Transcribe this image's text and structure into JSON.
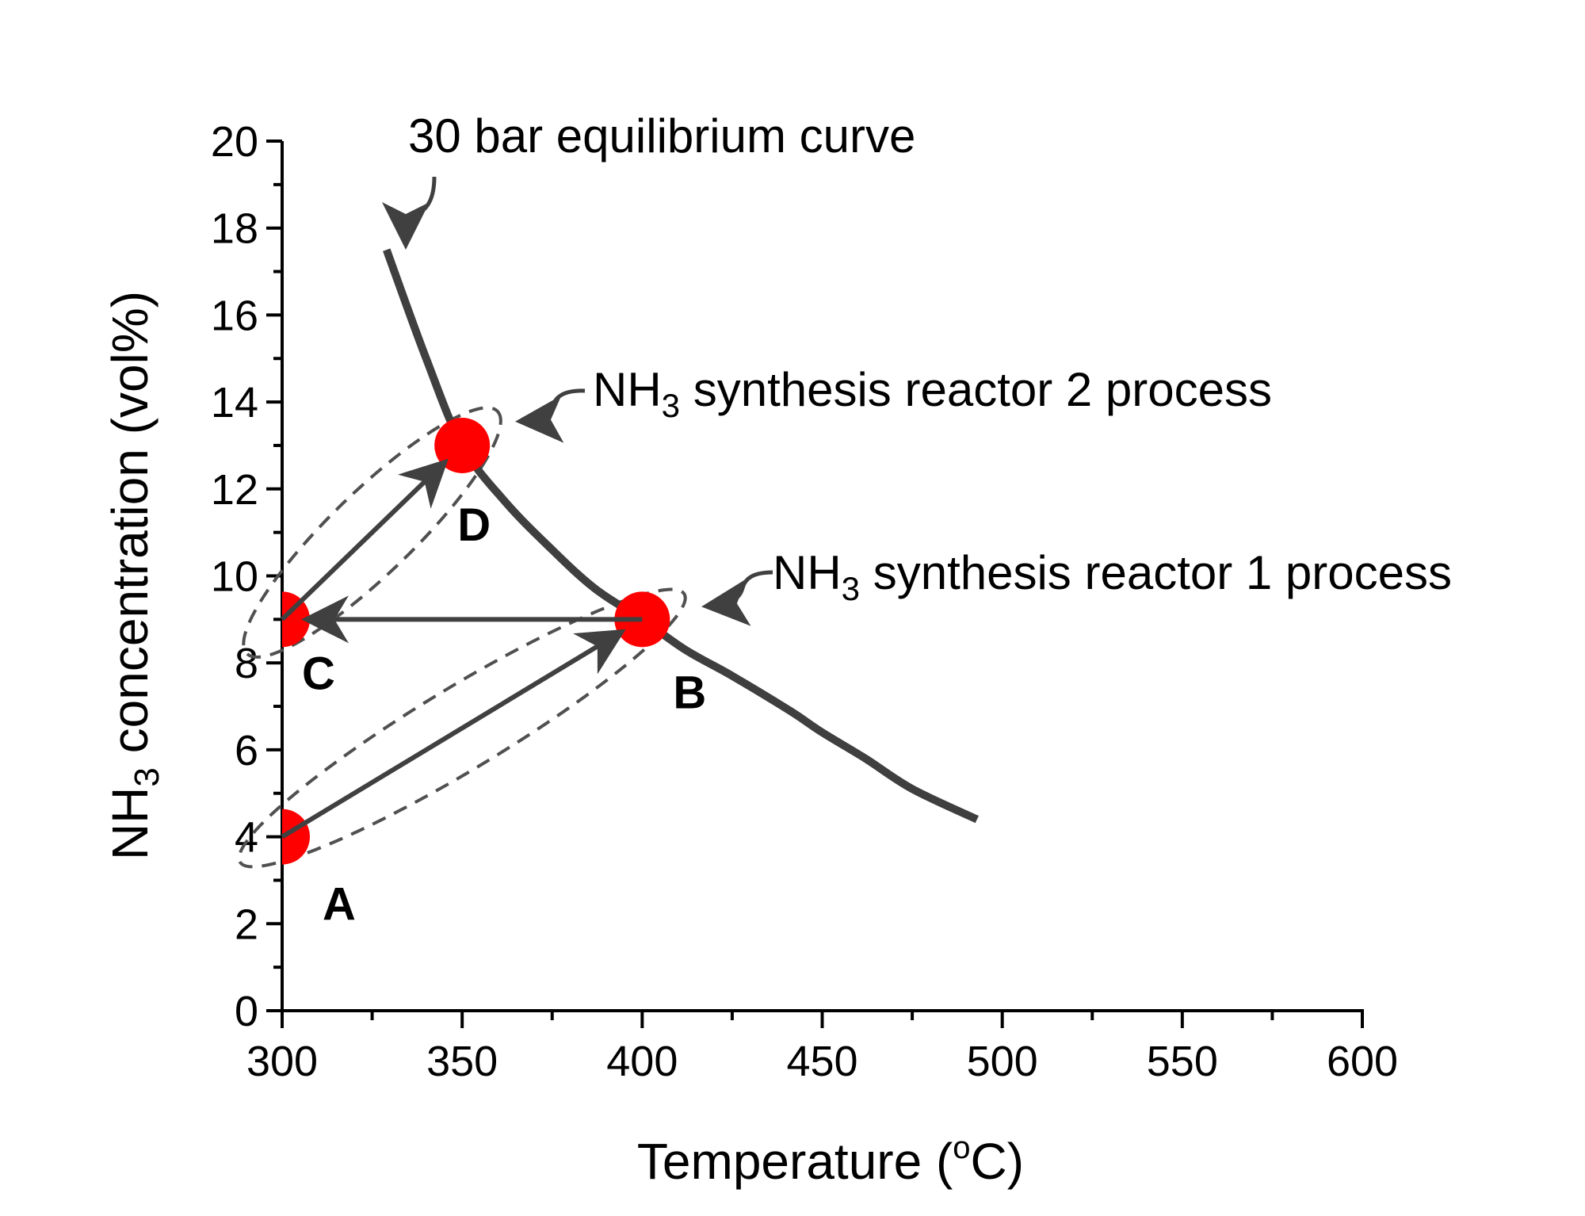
{
  "chart_data": {
    "type": "line",
    "title": "",
    "xlabel": "Temperature (°C)",
    "ylabel": "NH3 concentration (vol%)",
    "xlim": [
      300,
      600
    ],
    "ylim": [
      0,
      20
    ],
    "x_ticks": [
      300,
      350,
      400,
      450,
      500,
      550,
      600
    ],
    "y_ticks": [
      0,
      2,
      4,
      6,
      8,
      10,
      12,
      14,
      16,
      18,
      20
    ],
    "grid": false,
    "legend": null,
    "series": [
      {
        "name": "30 bar equilibrium curve",
        "style": "solid",
        "color": "#3f3f3f",
        "x": [
          329,
          340,
          350,
          362,
          375,
          387,
          400,
          412,
          425,
          441,
          450,
          462,
          475,
          493
        ],
        "y": [
          17.5,
          15.0,
          13.0,
          11.7,
          10.6,
          9.7,
          9.0,
          8.3,
          7.7,
          6.9,
          6.4,
          5.8,
          5.1,
          4.4
        ]
      }
    ],
    "points": [
      {
        "label": "A",
        "x": 300,
        "y": 4,
        "color": "#ff0000"
      },
      {
        "label": "B",
        "x": 400,
        "y": 9,
        "color": "#ff0000"
      },
      {
        "label": "C",
        "x": 300,
        "y": 9,
        "color": "#ff0000"
      },
      {
        "label": "D",
        "x": 350,
        "y": 13,
        "color": "#ff0000"
      }
    ],
    "arrows": [
      {
        "from": "A",
        "to": "B"
      },
      {
        "from": "B",
        "to": "C"
      },
      {
        "from": "C",
        "to": "D"
      }
    ],
    "groups": [
      {
        "name": "NH3 synthesis reactor 1 process",
        "members": [
          "A",
          "B"
        ]
      },
      {
        "name": "NH3 synthesis reactor 2 process",
        "members": [
          "C",
          "D"
        ]
      }
    ],
    "annotations": [
      {
        "text": "30 bar equilibrium curve",
        "target": "equilibrium curve start"
      },
      {
        "text": "NH3 synthesis reactor 2 process",
        "target": "C-D ellipse"
      },
      {
        "text": "NH3 synthesis reactor 1 process",
        "target": "A-B ellipse"
      }
    ]
  },
  "labels": {
    "curve_annotation": "30 bar equilibrium curve",
    "reactor2_prefix": "NH",
    "reactor2_sub": "3",
    "reactor2_suffix": " synthesis reactor 2 process",
    "reactor1_prefix": "NH",
    "reactor1_sub": "3",
    "reactor1_suffix": " synthesis reactor 1 process",
    "xaxis_prefix": "Temperature (",
    "xaxis_sup": "o",
    "xaxis_suffix": "C)",
    "yaxis_prefix": "NH",
    "yaxis_sub": "3",
    "yaxis_suffix": " concentration (vol%)"
  },
  "colors": {
    "marker": "#ff0000",
    "curve": "#3f3f3f",
    "arrow": "#404040",
    "dashed": "#505050",
    "axis": "#000000"
  }
}
